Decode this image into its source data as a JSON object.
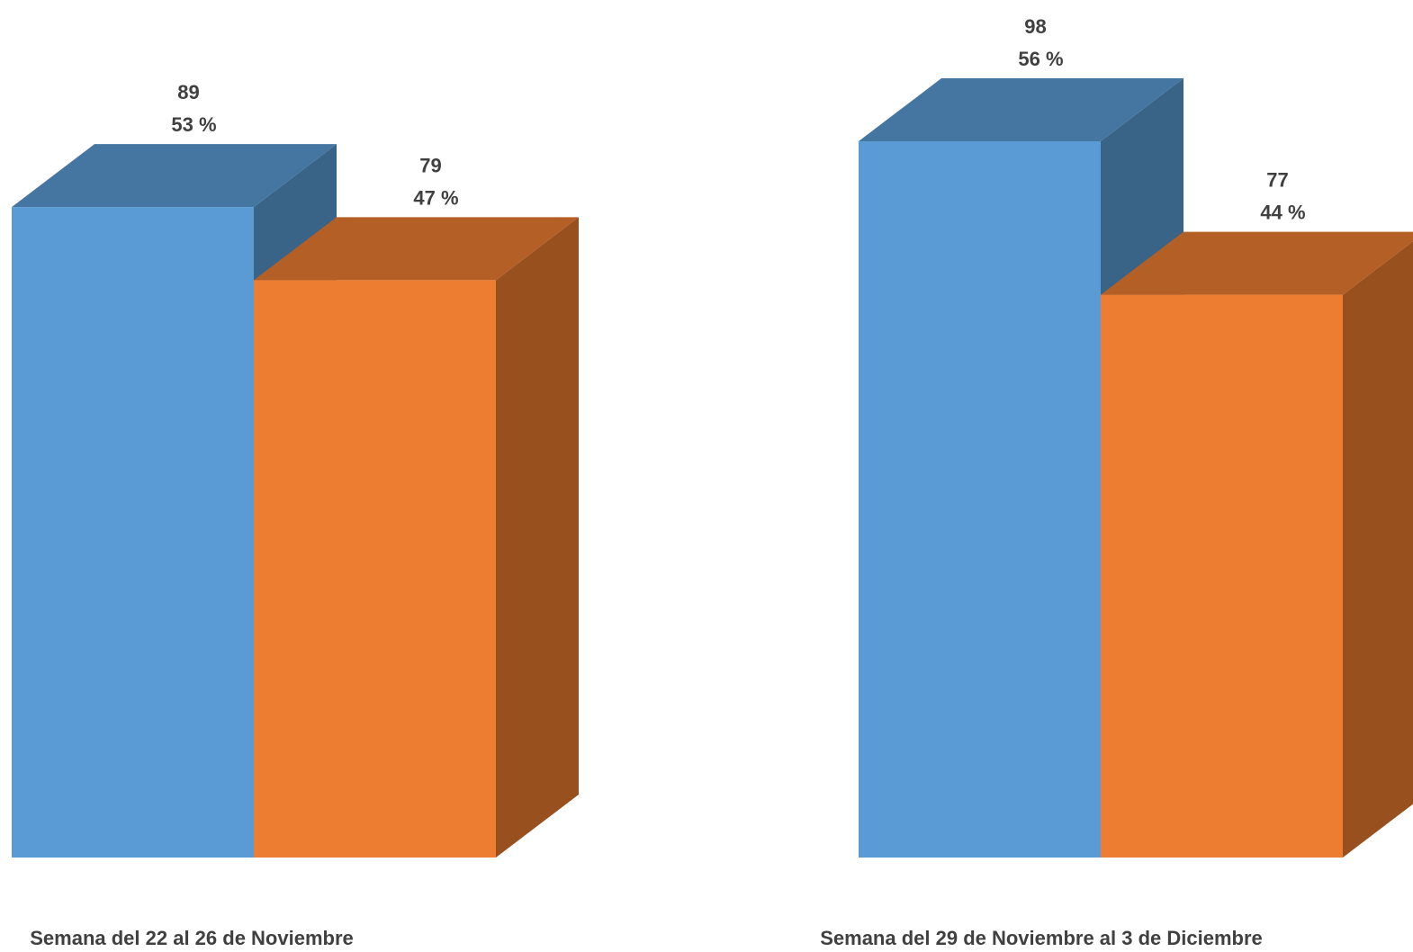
{
  "chart_data": {
    "type": "bar",
    "style": "3d-column",
    "categories": [
      "Semana del 22 al 26 de Noviembre",
      "Semana del 29 de Noviembre al 3 de Diciembre"
    ],
    "series": [
      {
        "color": "#5B9BD5",
        "values": [
          89,
          98
        ],
        "labels": [
          "53 %",
          "56 %"
        ]
      },
      {
        "color": "#ED7D31",
        "values": [
          79,
          77
        ],
        "labels": [
          "47 %",
          "44 %"
        ]
      }
    ],
    "ylim": [
      0,
      98
    ],
    "grid": false,
    "legend": "none"
  }
}
